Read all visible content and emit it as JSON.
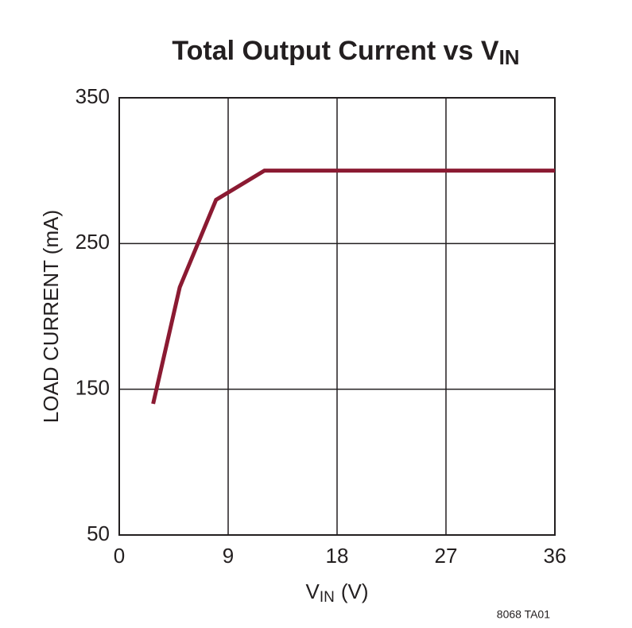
{
  "chart_data": {
    "type": "line",
    "title": {
      "text": "Total Output Current vs V",
      "subscript": "IN"
    },
    "x_label": {
      "text": "V",
      "subscript": "IN",
      "suffix": "(V)"
    },
    "y_label": "LOAD CURRENT (mA)",
    "footnote": "8068 TA01",
    "x": [
      2.8,
      5,
      8,
      12,
      36
    ],
    "values": [
      140,
      220,
      280,
      300,
      300
    ],
    "color": "#8b1a32",
    "xlim": [
      0,
      36
    ],
    "xticks": [
      0,
      9,
      18,
      27,
      36
    ],
    "ylim": [
      50,
      350
    ],
    "yticks": [
      50,
      150,
      250,
      350
    ],
    "grid": true
  }
}
